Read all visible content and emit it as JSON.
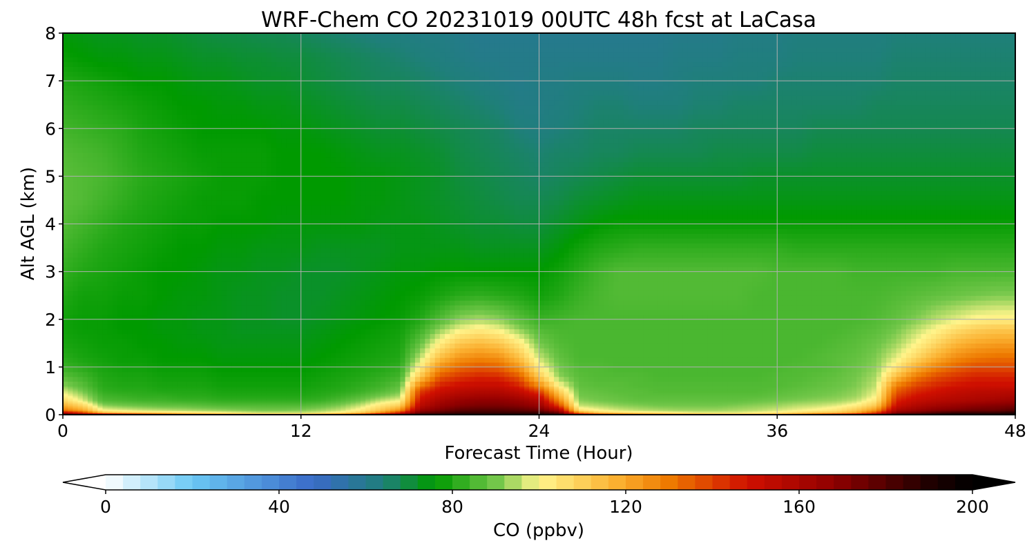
{
  "chart_data": {
    "type": "heatmap",
    "title": "WRF-Chem CO  20231019 00UTC 48h fcst at LaCasa",
    "xlabel": "Forecast Time (Hour)",
    "ylabel": "Alt AGL (km)",
    "xlim": [
      0,
      48
    ],
    "ylim": [
      0,
      8
    ],
    "xticks": [
      "0",
      "12",
      "24",
      "36",
      "48"
    ],
    "yticks": [
      "0",
      "1",
      "2",
      "3",
      "4",
      "5",
      "6",
      "7",
      "8"
    ],
    "grid": true,
    "colorbar": {
      "label": "CO  (ppbv)",
      "range": [
        0,
        200
      ],
      "ticks": [
        "0",
        "40",
        "80",
        "120",
        "160",
        "200"
      ],
      "extend": "both",
      "orientation": "horizontal",
      "stops": [
        {
          "v": 0,
          "c": "#ffffff"
        },
        {
          "v": 20,
          "c": "#6ac8f4"
        },
        {
          "v": 48,
          "c": "#3a6ac8"
        },
        {
          "v": 64,
          "c": "#1f7f7a"
        },
        {
          "v": 76,
          "c": "#009a00"
        },
        {
          "v": 90,
          "c": "#73c74a"
        },
        {
          "v": 100,
          "c": "#fff58c"
        },
        {
          "v": 118,
          "c": "#fbb030"
        },
        {
          "v": 130,
          "c": "#ee7a00"
        },
        {
          "v": 148,
          "c": "#d01000"
        },
        {
          "v": 168,
          "c": "#8f0000"
        },
        {
          "v": 190,
          "c": "#200000"
        },
        {
          "v": 200,
          "c": "#000000"
        }
      ]
    },
    "x_hours": [
      0,
      1,
      2,
      3,
      4,
      5,
      6,
      7,
      8,
      9,
      10,
      11,
      12,
      13,
      14,
      15,
      16,
      17,
      18,
      19,
      20,
      21,
      22,
      23,
      24,
      25,
      26,
      27,
      28,
      29,
      30,
      31,
      32,
      33,
      34,
      35,
      36,
      37,
      38,
      39,
      40,
      41,
      42,
      43,
      44,
      45,
      46,
      47,
      48
    ],
    "y_km": [
      0,
      0.05,
      0.1,
      0.2,
      0.3,
      0.4,
      0.5,
      0.6,
      0.8,
      1,
      1.2,
      1.5,
      1.8,
      2,
      2.5,
      3,
      3.5,
      4,
      4.5,
      5,
      5.5,
      6,
      6.5,
      7,
      7.5,
      8
    ],
    "z_ppbv": [
      [
        200,
        190,
        190,
        185,
        175,
        165,
        150,
        145,
        140,
        135,
        130,
        128,
        130,
        140,
        150,
        165,
        185,
        195,
        195,
        195,
        195,
        195,
        195,
        195,
        195,
        195,
        180,
        170,
        160,
        150,
        145,
        140,
        135,
        130,
        128,
        130,
        135,
        145,
        160,
        175,
        180,
        190,
        200,
        195,
        200,
        200,
        200,
        200,
        200
      ],
      [
        155,
        140,
        115,
        110,
        108,
        106,
        104,
        102,
        100,
        98,
        96,
        96,
        96,
        98,
        102,
        110,
        125,
        145,
        175,
        180,
        185,
        185,
        185,
        185,
        185,
        175,
        125,
        110,
        106,
        104,
        102,
        100,
        98,
        98,
        98,
        100,
        102,
        106,
        110,
        112,
        120,
        140,
        170,
        175,
        180,
        185,
        185,
        185,
        190
      ],
      [
        130,
        120,
        100,
        98,
        96,
        95,
        94,
        93,
        92,
        91,
        90,
        90,
        91,
        93,
        96,
        102,
        112,
        125,
        165,
        172,
        178,
        180,
        180,
        178,
        175,
        160,
        105,
        100,
        97,
        95,
        94,
        93,
        93,
        93,
        94,
        95,
        97,
        99,
        101,
        104,
        112,
        125,
        160,
        165,
        170,
        172,
        175,
        175,
        180
      ],
      [
        118,
        108,
        92,
        90,
        89,
        88,
        88,
        87,
        86,
        86,
        86,
        86,
        86,
        88,
        91,
        96,
        104,
        110,
        155,
        165,
        170,
        172,
        172,
        170,
        165,
        140,
        96,
        94,
        92,
        91,
        90,
        90,
        90,
        90,
        91,
        92,
        93,
        95,
        96,
        98,
        102,
        112,
        150,
        158,
        162,
        165,
        168,
        170,
        172
      ],
      [
        108,
        98,
        86,
        85,
        84,
        84,
        83,
        83,
        82,
        82,
        82,
        82,
        82,
        83,
        86,
        90,
        96,
        100,
        150,
        160,
        166,
        168,
        168,
        165,
        158,
        128,
        92,
        90,
        89,
        88,
        88,
        88,
        88,
        88,
        88,
        89,
        90,
        91,
        92,
        93,
        96,
        104,
        145,
        152,
        156,
        158,
        160,
        162,
        165
      ],
      [
        102,
        94,
        84,
        83,
        82,
        82,
        81,
        81,
        80,
        80,
        80,
        80,
        80,
        81,
        83,
        86,
        90,
        94,
        145,
        155,
        160,
        162,
        162,
        158,
        150,
        118,
        90,
        89,
        88,
        87,
        87,
        87,
        87,
        87,
        87,
        87,
        88,
        89,
        90,
        91,
        93,
        100,
        140,
        148,
        152,
        155,
        157,
        158,
        160
      ],
      [
        97,
        90,
        82,
        81,
        81,
        80,
        80,
        80,
        79,
        79,
        79,
        79,
        79,
        80,
        81,
        83,
        86,
        90,
        140,
        150,
        155,
        157,
        157,
        152,
        140,
        110,
        89,
        88,
        87,
        87,
        86,
        86,
        86,
        86,
        86,
        86,
        87,
        88,
        89,
        90,
        92,
        98,
        135,
        144,
        148,
        152,
        154,
        155,
        156
      ],
      [
        92,
        87,
        81,
        80,
        80,
        79,
        79,
        79,
        78,
        78,
        78,
        78,
        78,
        79,
        80,
        82,
        84,
        88,
        130,
        146,
        150,
        152,
        152,
        146,
        128,
        102,
        88,
        87,
        87,
        86,
        86,
        86,
        86,
        86,
        86,
        86,
        86,
        87,
        88,
        89,
        91,
        96,
        130,
        140,
        145,
        148,
        150,
        150,
        150
      ],
      [
        87,
        84,
        80,
        79,
        79,
        78,
        78,
        78,
        77,
        77,
        77,
        77,
        77,
        78,
        79,
        80,
        82,
        84,
        112,
        136,
        142,
        145,
        144,
        136,
        112,
        92,
        87,
        86,
        86,
        86,
        85,
        85,
        85,
        85,
        85,
        85,
        86,
        86,
        87,
        88,
        90,
        94,
        115,
        130,
        138,
        142,
        145,
        145,
        145
      ],
      [
        83,
        81,
        79,
        78,
        78,
        77,
        77,
        77,
        76,
        76,
        76,
        76,
        76,
        77,
        78,
        79,
        80,
        82,
        102,
        125,
        133,
        136,
        134,
        124,
        102,
        90,
        86,
        86,
        85,
        85,
        85,
        85,
        85,
        85,
        85,
        85,
        85,
        86,
        86,
        87,
        89,
        92,
        104,
        118,
        128,
        134,
        138,
        138,
        138
      ],
      [
        81,
        79,
        78,
        77,
        77,
        76,
        76,
        76,
        75,
        75,
        75,
        75,
        75,
        76,
        77,
        78,
        79,
        80,
        95,
        114,
        124,
        127,
        125,
        114,
        96,
        88,
        85,
        85,
        85,
        85,
        85,
        85,
        85,
        85,
        85,
        85,
        85,
        85,
        86,
        87,
        88,
        91,
        98,
        108,
        118,
        126,
        130,
        132,
        132
      ],
      [
        79,
        78,
        77,
        77,
        76,
        76,
        75,
        75,
        74,
        74,
        74,
        74,
        74,
        75,
        76,
        77,
        78,
        79,
        88,
        102,
        112,
        115,
        112,
        103,
        90,
        86,
        85,
        85,
        85,
        85,
        85,
        85,
        85,
        85,
        85,
        85,
        85,
        85,
        85,
        86,
        87,
        89,
        93,
        100,
        108,
        116,
        120,
        122,
        122
      ],
      [
        78,
        77,
        77,
        76,
        76,
        75,
        75,
        74,
        74,
        73,
        73,
        73,
        73,
        74,
        75,
        76,
        77,
        78,
        83,
        92,
        99,
        102,
        99,
        92,
        86,
        85,
        85,
        85,
        85,
        85,
        85,
        85,
        85,
        85,
        85,
        85,
        85,
        85,
        85,
        85,
        86,
        87,
        90,
        95,
        100,
        106,
        110,
        112,
        112
      ],
      [
        78,
        77,
        77,
        76,
        76,
        75,
        75,
        74,
        74,
        73,
        73,
        72,
        72,
        73,
        74,
        75,
        76,
        77,
        80,
        86,
        92,
        94,
        92,
        87,
        83,
        84,
        85,
        85,
        85,
        85,
        85,
        85,
        85,
        85,
        85,
        85,
        85,
        85,
        85,
        85,
        85,
        86,
        88,
        91,
        95,
        98,
        101,
        102,
        102
      ],
      [
        80,
        78,
        78,
        77,
        77,
        76,
        75,
        75,
        74,
        73,
        73,
        72,
        72,
        72,
        73,
        74,
        75,
        76,
        77,
        79,
        81,
        82,
        81,
        80,
        78,
        80,
        83,
        85,
        86,
        86,
        86,
        86,
        86,
        86,
        86,
        85,
        85,
        85,
        85,
        85,
        85,
        85,
        86,
        87,
        88,
        89,
        90,
        91,
        91
      ],
      [
        82,
        80,
        79,
        78,
        77,
        76,
        76,
        75,
        74,
        74,
        73,
        73,
        72,
        72,
        72,
        73,
        74,
        75,
        75,
        76,
        76,
        76,
        76,
        76,
        76,
        78,
        81,
        84,
        86,
        86,
        86,
        86,
        86,
        86,
        86,
        86,
        85,
        85,
        85,
        85,
        84,
        84,
        84,
        84,
        84,
        85,
        85,
        85,
        85
      ],
      [
        84,
        82,
        80,
        79,
        78,
        77,
        76,
        76,
        75,
        75,
        74,
        74,
        74,
        73,
        73,
        73,
        73,
        74,
        74,
        74,
        74,
        73,
        73,
        73,
        73,
        75,
        78,
        80,
        81,
        82,
        82,
        82,
        82,
        82,
        82,
        82,
        82,
        81,
        81,
        81,
        81,
        81,
        81,
        81,
        81,
        81,
        81,
        81,
        81
      ],
      [
        86,
        84,
        82,
        80,
        79,
        78,
        77,
        77,
        76,
        76,
        76,
        75,
        75,
        75,
        75,
        75,
        74,
        74,
        74,
        73,
        72,
        71,
        71,
        70,
        70,
        72,
        74,
        76,
        77,
        77,
        77,
        77,
        77,
        77,
        77,
        77,
        77,
        77,
        77,
        77,
        77,
        77,
        77,
        77,
        77,
        77,
        77,
        77,
        77
      ],
      [
        87,
        86,
        84,
        82,
        80,
        79,
        78,
        77,
        77,
        77,
        76,
        76,
        76,
        76,
        76,
        75,
        75,
        74,
        73,
        72,
        71,
        70,
        69,
        68,
        68,
        69,
        71,
        72,
        73,
        74,
        74,
        74,
        74,
        74,
        74,
        74,
        74,
        74,
        74,
        74,
        74,
        74,
        74,
        74,
        74,
        74,
        74,
        74,
        74
      ],
      [
        87,
        86,
        85,
        83,
        81,
        80,
        79,
        78,
        77,
        77,
        77,
        76,
        76,
        76,
        76,
        75,
        75,
        74,
        73,
        72,
        70,
        69,
        68,
        67,
        66,
        67,
        68,
        69,
        70,
        71,
        71,
        71,
        71,
        71,
        71,
        72,
        72,
        72,
        72,
        72,
        72,
        72,
        72,
        72,
        72,
        72,
        72,
        72,
        72
      ],
      [
        86,
        85,
        84,
        82,
        80,
        79,
        78,
        77,
        77,
        77,
        77,
        76,
        76,
        76,
        75,
        74,
        73,
        73,
        72,
        71,
        69,
        68,
        67,
        66,
        65,
        66,
        66,
        67,
        67,
        68,
        68,
        68,
        68,
        69,
        69,
        69,
        69,
        69,
        70,
        70,
        70,
        70,
        70,
        70,
        70,
        70,
        70,
        70,
        70
      ],
      [
        84,
        83,
        82,
        81,
        79,
        78,
        77,
        76,
        76,
        76,
        76,
        75,
        75,
        74,
        73,
        72,
        71,
        71,
        70,
        69,
        68,
        67,
        66,
        64,
        63,
        64,
        65,
        66,
        66,
        66,
        66,
        66,
        67,
        67,
        67,
        67,
        67,
        67,
        68,
        68,
        68,
        68,
        68,
        68,
        68,
        68,
        68,
        68,
        68
      ],
      [
        82,
        81,
        80,
        79,
        78,
        77,
        76,
        76,
        75,
        75,
        74,
        74,
        73,
        72,
        71,
        70,
        69,
        69,
        68,
        67,
        66,
        65,
        64,
        62,
        62,
        63,
        64,
        65,
        65,
        64,
        64,
        64,
        65,
        65,
        66,
        66,
        66,
        66,
        66,
        66,
        66,
        67,
        67,
        67,
        67,
        67,
        67,
        67,
        67
      ],
      [
        80,
        79,
        78,
        77,
        76,
        76,
        75,
        74,
        74,
        73,
        72,
        72,
        71,
        70,
        69,
        68,
        67,
        67,
        66,
        65,
        64,
        63,
        62,
        61,
        62,
        62,
        63,
        63,
        63,
        62,
        62,
        63,
        64,
        64,
        64,
        64,
        65,
        65,
        65,
        65,
        65,
        65,
        66,
        66,
        66,
        66,
        66,
        66,
        66
      ],
      [
        77,
        76,
        75,
        75,
        74,
        74,
        73,
        72,
        72,
        71,
        71,
        70,
        70,
        69,
        68,
        67,
        66,
        65,
        64,
        63,
        62,
        61,
        61,
        61,
        61,
        61,
        61,
        61,
        61,
        61,
        61,
        62,
        62,
        62,
        63,
        63,
        63,
        64,
        64,
        64,
        64,
        64,
        65,
        65,
        65,
        65,
        65,
        65,
        65
      ],
      [
        75,
        74,
        73,
        73,
        72,
        72,
        71,
        70,
        69,
        69,
        68,
        68,
        67,
        66,
        65,
        64,
        63,
        63,
        62,
        62,
        61,
        60,
        60,
        60,
        60,
        60,
        60,
        60,
        60,
        60,
        60,
        61,
        61,
        61,
        62,
        62,
        62,
        63,
        63,
        63,
        63,
        63,
        64,
        64,
        64,
        64,
        64,
        64,
        64
      ]
    ]
  }
}
